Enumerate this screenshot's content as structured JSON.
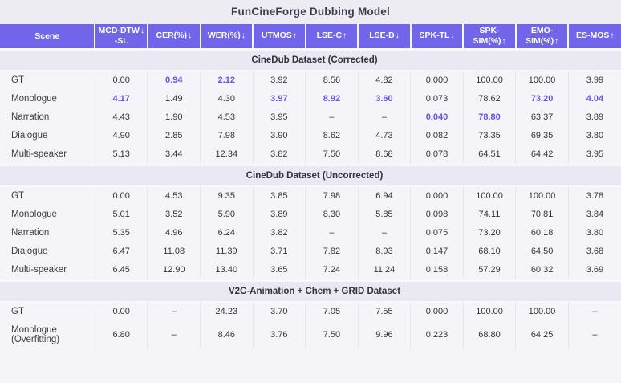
{
  "page": {
    "title": "FunCineForge Dubbing Model"
  },
  "colors": {
    "header_bg": "#7166e9",
    "highlight": "#6355e6",
    "page_bg": "#edecf3",
    "row_bg": "#f5f4f9",
    "section_bg": "#eae9f1",
    "header_text": "#ffffff"
  },
  "chart_data": {
    "type": "table",
    "title": "FunCineForge Dubbing Model",
    "columns": [
      {
        "label": "Scene",
        "arrow": ""
      },
      {
        "label": "MCD-DTW",
        "line2": "-SL",
        "arrow": "↓",
        "direction": "lower-better"
      },
      {
        "label": "CER(%)",
        "arrow": "↓",
        "direction": "lower-better"
      },
      {
        "label": "WER(%)",
        "arrow": "↓",
        "direction": "lower-better"
      },
      {
        "label": "UTMOS",
        "arrow": "↑",
        "direction": "higher-better"
      },
      {
        "label": "LSE-C",
        "arrow": "↑",
        "direction": "higher-better"
      },
      {
        "label": "LSE-D",
        "arrow": "↓",
        "direction": "lower-better"
      },
      {
        "label": "SPK-TL",
        "arrow": "↓",
        "direction": "lower-better"
      },
      {
        "label": "SPK-SIM(%)",
        "arrow": "↑",
        "direction": "higher-better"
      },
      {
        "label": "EMO-SIM(%)",
        "arrow": "↑",
        "direction": "higher-better"
      },
      {
        "label": "ES-MOS",
        "arrow": "↑",
        "direction": "higher-better"
      }
    ],
    "sections": [
      {
        "label": "CineDub Dataset (Corrected)",
        "rows": [
          {
            "scene": "GT",
            "values": [
              "0.00",
              "0.94",
              "2.12",
              "3.92",
              "8.56",
              "4.82",
              "0.000",
              "100.00",
              "100.00",
              "3.99"
            ],
            "highlights": [
              1,
              2
            ]
          },
          {
            "scene": "Monologue",
            "values": [
              "4.17",
              "1.49",
              "4.30",
              "3.97",
              "8.92",
              "3.60",
              "0.073",
              "78.62",
              "73.20",
              "4.04"
            ],
            "highlights": [
              0,
              3,
              4,
              5,
              8,
              9
            ]
          },
          {
            "scene": "Narration",
            "values": [
              "4.43",
              "1.90",
              "4.53",
              "3.95",
              "–",
              "–",
              "0.040",
              "78.80",
              "63.37",
              "3.89"
            ],
            "highlights": [
              6,
              7
            ]
          },
          {
            "scene": "Dialogue",
            "values": [
              "4.90",
              "2.85",
              "7.98",
              "3.90",
              "8.62",
              "4.73",
              "0.082",
              "73.35",
              "69.35",
              "3.80"
            ],
            "highlights": []
          },
          {
            "scene": "Multi-speaker",
            "values": [
              "5.13",
              "3.44",
              "12.34",
              "3.82",
              "7.50",
              "8.68",
              "0.078",
              "64.51",
              "64.42",
              "3.95"
            ],
            "highlights": []
          }
        ]
      },
      {
        "label": "CineDub Dataset (Uncorrected)",
        "rows": [
          {
            "scene": "GT",
            "values": [
              "0.00",
              "4.53",
              "9.35",
              "3.85",
              "7.98",
              "6.94",
              "0.000",
              "100.00",
              "100.00",
              "3.78"
            ],
            "highlights": []
          },
          {
            "scene": "Monologue",
            "values": [
              "5.01",
              "3.52",
              "5.90",
              "3.89",
              "8.30",
              "5.85",
              "0.098",
              "74.11",
              "70.81",
              "3.84"
            ],
            "highlights": []
          },
          {
            "scene": "Narration",
            "values": [
              "5.35",
              "4.96",
              "6.24",
              "3.82",
              "–",
              "–",
              "0.075",
              "73.20",
              "60.18",
              "3.80"
            ],
            "highlights": []
          },
          {
            "scene": "Dialogue",
            "values": [
              "6.47",
              "11.08",
              "11.39",
              "3.71",
              "7.82",
              "8.93",
              "0.147",
              "68.10",
              "64.50",
              "3.68"
            ],
            "highlights": []
          },
          {
            "scene": "Multi-speaker",
            "values": [
              "6.45",
              "12.90",
              "13.40",
              "3.65",
              "7.24",
              "11.24",
              "0.158",
              "57.29",
              "60.32",
              "3.69"
            ],
            "highlights": []
          }
        ]
      },
      {
        "label": "V2C-Animation + Chem + GRID Dataset",
        "rows": [
          {
            "scene": "GT",
            "values": [
              "0.00",
              "–",
              "24.23",
              "3.70",
              "7.05",
              "7.55",
              "0.000",
              "100.00",
              "100.00",
              "–"
            ],
            "highlights": []
          },
          {
            "scene": "Monologue (Overfitting)",
            "values": [
              "6.80",
              "–",
              "8.46",
              "3.76",
              "7.50",
              "9.96",
              "0.223",
              "68.80",
              "64.25",
              "–"
            ],
            "highlights": []
          }
        ]
      }
    ]
  }
}
